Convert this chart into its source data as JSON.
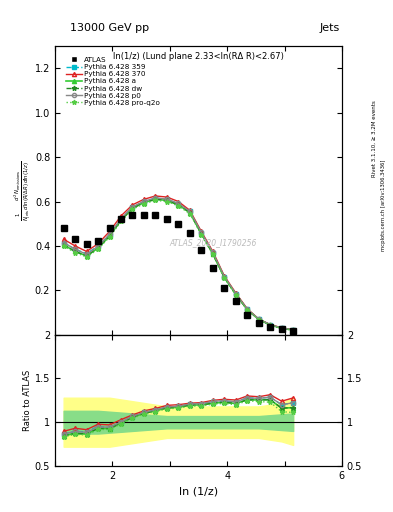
{
  "title_top": "13000 GeV pp",
  "title_right": "Jets",
  "plot_title": "ln(1/z) (Lund plane 2.33<ln(RΔ R)<2.67)",
  "xlabel": "ln (1/z)",
  "ylabel_main": "$\\frac{1}{N_{\\mathrm{jets}}}\\frac{d^2 N_{\\mathrm{emissions}}}{d\\ln(R/\\Delta R)\\,d\\ln(1/z)}$",
  "ylabel_ratio": "Ratio to ATLAS",
  "right_label1": "Rivet 3.1.10, ≥ 3.2M events",
  "right_label2": "mcplots.cern.ch [arXiv:1306.3436]",
  "watermark": "ATLAS_2020_I1790256",
  "xlim": [
    1.0,
    6.0
  ],
  "ylim_main": [
    0.0,
    1.3
  ],
  "ylim_ratio": [
    0.5,
    2.0
  ],
  "yticks_main": [
    0.2,
    0.4,
    0.6,
    0.8,
    1.0,
    1.2
  ],
  "yticks_ratio": [
    0.5,
    1.0,
    1.5,
    2.0
  ],
  "atlas_x": [
    1.15,
    1.35,
    1.55,
    1.75,
    1.95,
    2.15,
    2.35,
    2.55,
    2.75,
    2.95,
    3.15,
    3.35,
    3.55,
    3.75,
    3.95,
    4.15,
    4.35,
    4.55,
    4.75,
    4.95,
    5.15
  ],
  "atlas_y": [
    0.48,
    0.43,
    0.41,
    0.42,
    0.48,
    0.52,
    0.54,
    0.54,
    0.54,
    0.52,
    0.5,
    0.46,
    0.38,
    0.3,
    0.21,
    0.15,
    0.09,
    0.055,
    0.035,
    0.025,
    0.018
  ],
  "mc_x": [
    1.15,
    1.35,
    1.55,
    1.75,
    1.95,
    2.15,
    2.35,
    2.55,
    2.75,
    2.95,
    3.15,
    3.35,
    3.55,
    3.75,
    3.95,
    4.15,
    4.35,
    4.55,
    4.75,
    4.95,
    5.15
  ],
  "py359_y": [
    0.415,
    0.385,
    0.365,
    0.4,
    0.45,
    0.52,
    0.575,
    0.6,
    0.615,
    0.61,
    0.59,
    0.555,
    0.46,
    0.37,
    0.26,
    0.185,
    0.115,
    0.07,
    0.045,
    0.03,
    0.022
  ],
  "py370_y": [
    0.43,
    0.4,
    0.375,
    0.41,
    0.465,
    0.535,
    0.585,
    0.61,
    0.625,
    0.62,
    0.6,
    0.56,
    0.465,
    0.375,
    0.265,
    0.188,
    0.117,
    0.071,
    0.046,
    0.031,
    0.023
  ],
  "pya_y": [
    0.405,
    0.375,
    0.355,
    0.39,
    0.445,
    0.515,
    0.57,
    0.595,
    0.61,
    0.605,
    0.585,
    0.55,
    0.455,
    0.365,
    0.258,
    0.182,
    0.113,
    0.069,
    0.044,
    0.029,
    0.021
  ],
  "pydw_y": [
    0.405,
    0.375,
    0.355,
    0.39,
    0.445,
    0.515,
    0.57,
    0.595,
    0.61,
    0.605,
    0.585,
    0.55,
    0.455,
    0.365,
    0.258,
    0.182,
    0.113,
    0.069,
    0.044,
    0.029,
    0.021
  ],
  "pyp0_y": [
    0.415,
    0.385,
    0.362,
    0.398,
    0.452,
    0.522,
    0.576,
    0.601,
    0.616,
    0.611,
    0.591,
    0.556,
    0.461,
    0.371,
    0.262,
    0.185,
    0.115,
    0.07,
    0.045,
    0.03,
    0.022
  ],
  "pyq2o_y": [
    0.4,
    0.37,
    0.35,
    0.385,
    0.44,
    0.51,
    0.565,
    0.59,
    0.605,
    0.6,
    0.58,
    0.545,
    0.45,
    0.362,
    0.255,
    0.18,
    0.112,
    0.068,
    0.043,
    0.028,
    0.02
  ],
  "color_359": "#00bbcc",
  "color_370": "#dd2222",
  "color_a": "#33cc33",
  "color_dw": "#228822",
  "color_p0": "#888888",
  "color_q2o": "#55cc44",
  "band_yellow_lo": [
    0.72,
    0.72,
    0.72,
    0.72,
    0.72,
    0.74,
    0.76,
    0.78,
    0.8,
    0.82,
    0.82,
    0.82,
    0.82,
    0.82,
    0.82,
    0.82,
    0.82,
    0.82,
    0.8,
    0.78,
    0.74
  ],
  "band_yellow_hi": [
    1.28,
    1.28,
    1.28,
    1.28,
    1.28,
    1.26,
    1.24,
    1.22,
    1.2,
    1.18,
    1.18,
    1.18,
    1.18,
    1.18,
    1.18,
    1.18,
    1.18,
    1.18,
    1.2,
    1.22,
    1.28
  ],
  "band_green_lo": [
    0.87,
    0.87,
    0.87,
    0.87,
    0.88,
    0.89,
    0.9,
    0.91,
    0.92,
    0.93,
    0.93,
    0.93,
    0.93,
    0.93,
    0.93,
    0.93,
    0.93,
    0.93,
    0.92,
    0.91,
    0.9
  ],
  "band_green_hi": [
    1.13,
    1.13,
    1.13,
    1.13,
    1.12,
    1.11,
    1.1,
    1.09,
    1.08,
    1.07,
    1.07,
    1.07,
    1.07,
    1.07,
    1.07,
    1.07,
    1.07,
    1.07,
    1.08,
    1.09,
    1.1
  ]
}
